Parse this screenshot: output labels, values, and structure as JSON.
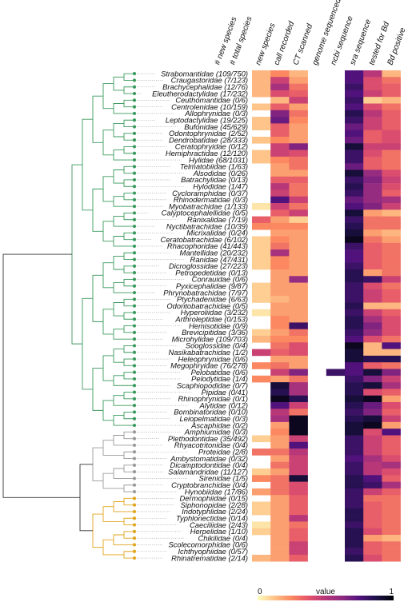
{
  "chart_data": {
    "type": "heatmap",
    "columns": [
      "# new species",
      "# total species",
      "new species",
      "call recorded",
      "CT scanned",
      "genome sequenced",
      "ncbi sequence",
      "sra sequence",
      "tested for Bd",
      "Bd positive"
    ],
    "families": [
      {
        "name": "Strabomantidae (109/750)",
        "clade": "green"
      },
      {
        "name": "Craugastoridae (7/123)",
        "clade": "green"
      },
      {
        "name": "Brachycephalidae (12/76)",
        "clade": "green"
      },
      {
        "name": "Eleutherodactylidae (17/232)",
        "clade": "green"
      },
      {
        "name": "Ceuthomantidae (0/6)",
        "clade": "green"
      },
      {
        "name": "Centrolenidae (10/159)",
        "clade": "green"
      },
      {
        "name": "Allophrynidae (0/3)",
        "clade": "green"
      },
      {
        "name": "Leptodactylidae (19/225)",
        "clade": "green"
      },
      {
        "name": "Bufonidae (45/629)",
        "clade": "green"
      },
      {
        "name": "Odontophrynidae (2/52)",
        "clade": "green"
      },
      {
        "name": "Dendrobatidae (28/333)",
        "clade": "green"
      },
      {
        "name": "Ceratophryidae (0/12)",
        "clade": "green"
      },
      {
        "name": "Hemiphractidae (12/120)",
        "clade": "green"
      },
      {
        "name": "Hylidae (68/1031)",
        "clade": "green"
      },
      {
        "name": "Telmatobiidae (1/63)",
        "clade": "green"
      },
      {
        "name": "Alsodidae (0/26)",
        "clade": "green"
      },
      {
        "name": "Batrachylidae (0/13)",
        "clade": "green"
      },
      {
        "name": "Hylodidae (1/47)",
        "clade": "green"
      },
      {
        "name": "Cycloramphidae (0/37)",
        "clade": "green"
      },
      {
        "name": "Rhinodermatidae (0/3)",
        "clade": "green"
      },
      {
        "name": "Myobatrachidae (1/133)",
        "clade": "green"
      },
      {
        "name": "Calyptocephalellidae (0/5)",
        "clade": "green"
      },
      {
        "name": "Ranixalidae (7/19)",
        "clade": "green"
      },
      {
        "name": "Nyctibatrachidae (10/39)",
        "clade": "green"
      },
      {
        "name": "Micrixalidae (0/24)",
        "clade": "green"
      },
      {
        "name": "Ceratobatrachidae (6/102)",
        "clade": "green"
      },
      {
        "name": "Rhacophoridae (41/443)",
        "clade": "green"
      },
      {
        "name": "Mantellidae (20/232)",
        "clade": "green"
      },
      {
        "name": "Ranidae (47/431)",
        "clade": "green"
      },
      {
        "name": "Dicroglossidae (27/223)",
        "clade": "green"
      },
      {
        "name": "Petropedetidae (0/13)",
        "clade": "green"
      },
      {
        "name": "Conrauidae (0/6)",
        "clade": "green"
      },
      {
        "name": "Pyxicephalidae (9/87)",
        "clade": "green"
      },
      {
        "name": "Phrynobatrachidae (7/97)",
        "clade": "green"
      },
      {
        "name": "Ptychadenidae (6/63)",
        "clade": "green"
      },
      {
        "name": "Odontobatrachidae (0/5)",
        "clade": "green"
      },
      {
        "name": "Hyperoliidae (3/232)",
        "clade": "green"
      },
      {
        "name": "Arthroleptidae (0/153)",
        "clade": "green"
      },
      {
        "name": "Hemisotidae (0/9)",
        "clade": "green"
      },
      {
        "name": "Brevicipitidae (3/36)",
        "clade": "green"
      },
      {
        "name": "Microhylidae (109/703)",
        "clade": "green"
      },
      {
        "name": "Sooglossidae (0/4)",
        "clade": "green"
      },
      {
        "name": "Nasikabatrachidae (1/2)",
        "clade": "green"
      },
      {
        "name": "Heleophrynidae (0/6)",
        "clade": "green"
      },
      {
        "name": "Megophryidae (76/278)",
        "clade": "green"
      },
      {
        "name": "Pelobatidae (0/6)",
        "clade": "green"
      },
      {
        "name": "Pelodytidae (1/4)",
        "clade": "green"
      },
      {
        "name": "Scaphiopodidae (0/7)",
        "clade": "green"
      },
      {
        "name": "Pipidae (0/41)",
        "clade": "green"
      },
      {
        "name": "Rhinophrynidae (0/1)",
        "clade": "green"
      },
      {
        "name": "Alytidae (0/12)",
        "clade": "green"
      },
      {
        "name": "Bombinatoridae (0/10)",
        "clade": "green"
      },
      {
        "name": "Leiopelmatidae (0/3)",
        "clade": "green"
      },
      {
        "name": "Ascaphidae (0/2)",
        "clade": "green"
      },
      {
        "name": "Amphiumidae (0/3)",
        "clade": "grey"
      },
      {
        "name": "Plethodontidae (35/492)",
        "clade": "grey"
      },
      {
        "name": "Rhyacotritonidae (0/4)",
        "clade": "grey"
      },
      {
        "name": "Proteidae (2/8)",
        "clade": "grey"
      },
      {
        "name": "Ambystomatidae (0/32)",
        "clade": "grey"
      },
      {
        "name": "Dicamptodontidae (0/4)",
        "clade": "grey"
      },
      {
        "name": "Salamandridae (11/127)",
        "clade": "grey"
      },
      {
        "name": "Sirenidae (1/5)",
        "clade": "grey"
      },
      {
        "name": "Cryptobranchidae (0/4)",
        "clade": "grey"
      },
      {
        "name": "Hynobiidae (17/86)",
        "clade": "grey"
      },
      {
        "name": "Dermophiidae (0/15)",
        "clade": "gold"
      },
      {
        "name": "Siphonopidae (2/28)",
        "clade": "gold"
      },
      {
        "name": "Indotyphlidae (2/24)",
        "clade": "gold"
      },
      {
        "name": "Typhlonectidae (0/14)",
        "clade": "gold"
      },
      {
        "name": "Caeciliidae (2/43)",
        "clade": "gold"
      },
      {
        "name": "Herpelidae (1/10)",
        "clade": "gold"
      },
      {
        "name": "Chikilidae (0/4)",
        "clade": "gold"
      },
      {
        "name": "Scolecomorphidae (0/6)",
        "clade": "gold"
      },
      {
        "name": "Ichthyophiidae (0/57)",
        "clade": "gold"
      },
      {
        "name": "Rhinatrematidae (2/14)",
        "clade": "gold"
      }
    ],
    "values": [
      [
        0.15,
        0.25,
        0.15,
        null,
        null,
        0.75,
        0.5,
        0.15
      ],
      [
        0.15,
        0.45,
        0.2,
        null,
        null,
        0.75,
        0.4,
        0.3
      ],
      [
        0.15,
        0.55,
        0.3,
        null,
        null,
        0.8,
        0.4,
        0.35
      ],
      [
        0.15,
        0.4,
        0.35,
        null,
        null,
        0.75,
        0.45,
        0.35
      ],
      [
        null,
        0.15,
        0.45,
        null,
        null,
        0.8,
        0.1,
        0.15
      ],
      [
        0.12,
        0.35,
        0.2,
        null,
        null,
        0.75,
        0.4,
        0.3
      ],
      [
        null,
        0.65,
        0.3,
        null,
        null,
        0.85,
        0.5,
        0.35
      ],
      [
        0.12,
        0.7,
        0.25,
        null,
        null,
        0.8,
        0.45,
        0.35
      ],
      [
        0.12,
        0.35,
        0.2,
        null,
        null,
        0.7,
        0.45,
        0.35
      ],
      [
        null,
        0.35,
        0.2,
        null,
        null,
        0.75,
        0.35,
        0.4
      ],
      [
        0.12,
        0.25,
        0.2,
        null,
        null,
        0.7,
        0.35,
        0.4
      ],
      [
        null,
        0.45,
        0.65,
        null,
        null,
        0.9,
        0.45,
        0.45
      ],
      [
        0.12,
        0.45,
        0.4,
        null,
        null,
        0.8,
        0.4,
        0.3
      ],
      [
        0.12,
        0.25,
        0.3,
        null,
        null,
        0.8,
        0.35,
        0.3
      ],
      [
        null,
        0.2,
        0.3,
        null,
        null,
        0.7,
        0.35,
        0.3
      ],
      [
        null,
        0.2,
        0.2,
        null,
        null,
        0.9,
        0.6,
        0.4
      ],
      [
        null,
        0.35,
        0.35,
        null,
        null,
        0.8,
        0.65,
        0.45
      ],
      [
        null,
        0.5,
        0.3,
        null,
        null,
        0.85,
        0.6,
        0.4
      ],
      [
        null,
        0.45,
        0.3,
        null,
        null,
        0.8,
        0.6,
        0.35
      ],
      [
        null,
        0.75,
        0.45,
        null,
        null,
        0.7,
        0.6,
        0.55
      ],
      [
        0.05,
        0.45,
        0.3,
        null,
        null,
        0.75,
        0.65,
        0.45
      ],
      [
        null,
        0.35,
        0.45,
        null,
        null,
        0.9,
        0.2,
        0.15
      ],
      [
        0.35,
        0.2,
        0.1,
        null,
        null,
        0.8,
        0.3,
        0.3
      ],
      [
        0.25,
        0.25,
        0.25,
        null,
        null,
        0.85,
        0.3,
        0.3
      ],
      [
        null,
        0.2,
        0.2,
        null,
        null,
        0.9,
        0.2,
        0.15
      ],
      [
        0.1,
        0.25,
        0.2,
        null,
        null,
        0.95,
        0.3,
        0.2
      ],
      [
        0.1,
        0.3,
        0.2,
        null,
        null,
        0.8,
        0.35,
        0.3
      ],
      [
        0.1,
        0.55,
        0.2,
        null,
        null,
        0.75,
        0.35,
        0.3
      ],
      [
        0.1,
        0.25,
        0.2,
        null,
        null,
        0.75,
        0.35,
        0.3
      ],
      [
        0.1,
        0.25,
        0.2,
        null,
        null,
        0.8,
        0.35,
        0.3
      ],
      [
        null,
        0.2,
        0.2,
        null,
        null,
        0.85,
        0.2,
        0.3
      ],
      [
        null,
        0.2,
        0.6,
        null,
        null,
        0.85,
        0.8,
        0.45
      ],
      [
        0.1,
        0.2,
        0.2,
        null,
        null,
        0.8,
        0.4,
        0.3
      ],
      [
        0.1,
        0.2,
        0.2,
        null,
        null,
        0.8,
        0.45,
        0.35
      ],
      [
        0.1,
        0.15,
        0.2,
        null,
        null,
        0.8,
        0.45,
        0.35
      ],
      [
        null,
        0.2,
        0.2,
        null,
        null,
        0.85,
        0.15,
        0.15
      ],
      [
        0.05,
        0.2,
        0.2,
        null,
        null,
        0.8,
        0.45,
        0.35
      ],
      [
        null,
        0.25,
        0.2,
        null,
        null,
        0.85,
        0.55,
        0.4
      ],
      [
        null,
        0.25,
        0.8,
        null,
        null,
        0.85,
        0.65,
        0.4
      ],
      [
        0.1,
        0.2,
        0.3,
        null,
        null,
        0.8,
        0.6,
        0.4
      ],
      [
        0.15,
        0.25,
        0.25,
        null,
        null,
        0.75,
        0.4,
        0.3
      ],
      [
        null,
        0.3,
        0.4,
        null,
        null,
        0.95,
        0.15,
        0.75
      ],
      [
        0.45,
        0.35,
        0.4,
        null,
        null,
        0.9,
        0.15,
        0.15
      ],
      [
        null,
        0.2,
        0.2,
        null,
        null,
        0.9,
        0.85,
        0.85
      ],
      [
        0.25,
        0.3,
        0.2,
        null,
        null,
        0.75,
        0.35,
        0.3
      ],
      [
        null,
        0.45,
        0.65,
        null,
        0.8,
        0.75,
        0.9,
        0.65
      ],
      [
        0.25,
        0.2,
        0.3,
        null,
        null,
        0.8,
        0.65,
        0.45
      ],
      [
        null,
        0.9,
        0.55,
        null,
        null,
        0.85,
        0.9,
        0.55
      ],
      [
        null,
        0.85,
        0.55,
        null,
        null,
        0.85,
        0.4,
        0.35
      ],
      [
        null,
        0.95,
        0.85,
        null,
        null,
        0.9,
        0.95,
        0.2
      ],
      [
        null,
        0.75,
        0.45,
        null,
        null,
        0.85,
        0.7,
        0.4
      ],
      [
        null,
        0.5,
        0.3,
        null,
        null,
        0.8,
        0.65,
        0.35
      ],
      [
        null,
        0.55,
        0.95,
        null,
        null,
        0.85,
        0.9,
        0.45
      ],
      [
        null,
        0.2,
        0.95,
        null,
        null,
        0.9,
        0.95,
        0.2
      ],
      [
        null,
        0.25,
        0.95,
        null,
        null,
        0.9,
        0.4,
        0.75
      ],
      [
        0.1,
        0.2,
        0.45,
        null,
        null,
        0.8,
        0.45,
        0.35
      ],
      [
        null,
        0.2,
        0.75,
        null,
        null,
        0.8,
        0.45,
        0.35
      ],
      [
        0.3,
        0.3,
        0.5,
        null,
        null,
        0.8,
        0.45,
        0.35
      ],
      [
        null,
        0.2,
        0.45,
        null,
        null,
        0.75,
        0.55,
        0.4
      ],
      [
        null,
        0.3,
        0.45,
        null,
        null,
        0.8,
        0.5,
        0.55
      ],
      [
        0.1,
        0.2,
        0.45,
        null,
        null,
        0.8,
        0.5,
        0.4
      ],
      [
        0.25,
        0.3,
        0.9,
        null,
        null,
        0.85,
        0.75,
        0.35
      ],
      [
        null,
        0.3,
        0.4,
        null,
        null,
        0.85,
        0.8,
        0.55
      ],
      [
        0.2,
        0.3,
        0.4,
        null,
        null,
        0.8,
        0.45,
        0.35
      ],
      [
        null,
        0.2,
        0.35,
        null,
        null,
        0.8,
        0.3,
        0.3
      ],
      [
        0.1,
        0.2,
        0.35,
        null,
        null,
        0.8,
        0.35,
        0.3
      ],
      [
        0.1,
        0.2,
        0.35,
        null,
        null,
        0.85,
        0.35,
        0.3
      ],
      [
        null,
        0.2,
        0.5,
        null,
        null,
        0.85,
        0.35,
        0.3
      ],
      [
        0.05,
        0.2,
        0.3,
        null,
        null,
        0.8,
        0.35,
        0.3
      ],
      [
        0.1,
        0.2,
        0.35,
        null,
        null,
        0.85,
        0.4,
        0.3
      ],
      [
        null,
        0.2,
        0.35,
        null,
        null,
        0.85,
        0.2,
        0.15
      ],
      [
        null,
        0.2,
        0.45,
        null,
        null,
        0.85,
        0.35,
        0.3
      ],
      [
        null,
        0.2,
        0.45,
        null,
        null,
        0.8,
        0.35,
        0.3
      ],
      [
        0.15,
        0.2,
        0.35,
        null,
        null,
        0.85,
        0.4,
        0.3
      ]
    ],
    "legend": {
      "label": "value",
      "min": "0",
      "max": "1",
      "colors": [
        "#fcfdbf",
        "#fec287",
        "#fb8861",
        "#e3536b",
        "#b73779",
        "#8c2981",
        "#51127c",
        "#1d1147",
        "#000004"
      ]
    },
    "clade_colors": {
      "green": "#3a9a5e",
      "grey": "#9a9a9a",
      "gold": "#e0a51e"
    }
  }
}
